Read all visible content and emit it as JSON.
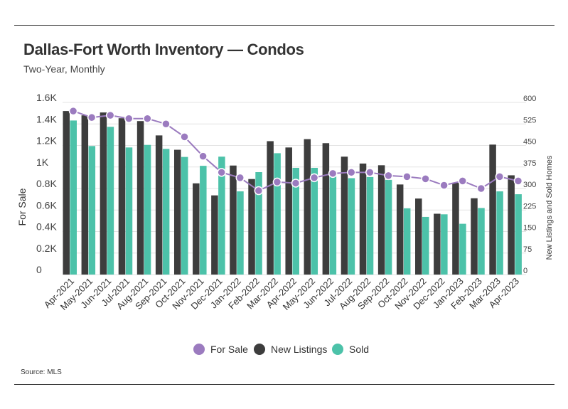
{
  "header": {
    "title": "Dallas-Fort Worth Inventory — Condos",
    "subtitle": "Two-Year, Monthly"
  },
  "footer": {
    "source": "Source: MLS"
  },
  "chart_data": {
    "type": "bar",
    "title": "Dallas-Fort Worth Inventory — Condos",
    "subtitle": "Two-Year, Monthly",
    "ylabel": "For Sale",
    "ylabel_right": "New Listings and Sold Homes",
    "ylim": [
      0,
      1600
    ],
    "ylim_right": [
      0,
      600
    ],
    "yticks": [
      "0",
      "0.2K",
      "0.4K",
      "0.6K",
      "0.8K",
      "1K",
      "1.2K",
      "1.4K",
      "1.6K"
    ],
    "yticks_right": [
      "0",
      "75",
      "150",
      "225",
      "300",
      "375",
      "450",
      "525",
      "600"
    ],
    "categories": [
      "Apr-2021",
      "May-2021",
      "Jun-2021",
      "Jul-2021",
      "Aug-2021",
      "Sep-2021",
      "Oct-2021",
      "Nov-2021",
      "Dec-2021",
      "Jan-2022",
      "Feb-2022",
      "Mar-2022",
      "Apr-2022",
      "May-2022",
      "Jun-2022",
      "Jul-2022",
      "Aug-2022",
      "Sep-2022",
      "Oct-2022",
      "Nov-2022",
      "Dec-2022",
      "Jan-2023",
      "Feb-2023",
      "Mar-2023",
      "Apr-2023"
    ],
    "series": [
      {
        "name": "For Sale",
        "kind": "line",
        "axis": "left",
        "color": "#9b7bbf",
        "values": [
          1520,
          1460,
          1480,
          1450,
          1450,
          1400,
          1280,
          1100,
          950,
          900,
          780,
          860,
          850,
          900,
          940,
          950,
          950,
          920,
          910,
          890,
          830,
          870,
          800,
          910,
          870
        ]
      },
      {
        "name": "New Listings",
        "kind": "bar",
        "axis": "right",
        "color": "#3d3d3d",
        "values": [
          570,
          555,
          565,
          545,
          535,
          485,
          435,
          318,
          276,
          380,
          333,
          465,
          443,
          472,
          458,
          411,
          387,
          381,
          314,
          265,
          212,
          320,
          266,
          453,
          346
        ]
      },
      {
        "name": "Sold",
        "kind": "bar",
        "axis": "right",
        "color": "#4cc2a9",
        "values": [
          537,
          448,
          515,
          443,
          452,
          438,
          410,
          379,
          411,
          290,
          357,
          423,
          372,
          372,
          342,
          336,
          340,
          330,
          231,
          201,
          210,
          177,
          232,
          290,
          280
        ]
      }
    ],
    "grid": true,
    "legend": "bottom-center"
  }
}
